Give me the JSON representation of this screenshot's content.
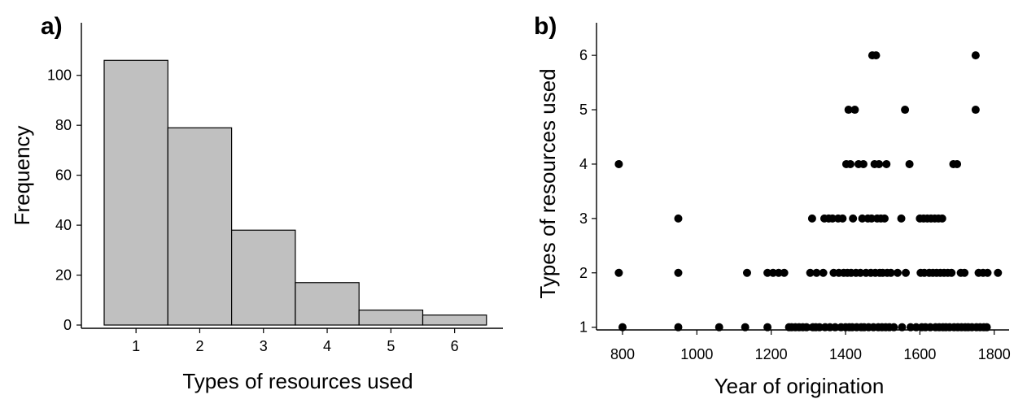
{
  "chart_data": [
    {
      "panel_label": "a)",
      "type": "bar",
      "title": "",
      "xlabel": "Types of resources used",
      "ylabel": "Frequency",
      "categories": [
        "1",
        "2",
        "3",
        "4",
        "5",
        "6"
      ],
      "values": [
        106,
        79,
        38,
        17,
        6,
        4
      ],
      "ylim": [
        0,
        110
      ],
      "yticks": [
        0,
        20,
        40,
        60,
        80,
        100
      ],
      "grid": false,
      "bar_color": "#c0c0c0"
    },
    {
      "panel_label": "b)",
      "type": "scatter",
      "title": "",
      "xlabel": "Year of origination",
      "ylabel": "Types of resources used",
      "xlim": [
        730,
        1840
      ],
      "ylim": [
        0.95,
        6.6
      ],
      "xticks": [
        800,
        1000,
        1200,
        1400,
        1600,
        1800
      ],
      "yticks": [
        1,
        2,
        3,
        4,
        5,
        6
      ],
      "grid": false,
      "point_color": "#000000",
      "series": [
        {
          "points": [
            [
              790,
              4
            ],
            [
              790,
              2
            ],
            [
              800,
              1
            ],
            [
              950,
              3
            ],
            [
              950,
              2
            ],
            [
              950,
              1
            ],
            [
              1060,
              1
            ],
            [
              1130,
              1
            ],
            [
              1135,
              2
            ],
            [
              1190,
              1
            ],
            [
              1190,
              2
            ],
            [
              1205,
              2
            ],
            [
              1220,
              2
            ],
            [
              1235,
              2
            ],
            [
              1248,
              1
            ],
            [
              1255,
              1
            ],
            [
              1265,
              1
            ],
            [
              1275,
              1
            ],
            [
              1285,
              1
            ],
            [
              1295,
              1
            ],
            [
              1305,
              2
            ],
            [
              1310,
              3
            ],
            [
              1312,
              1
            ],
            [
              1320,
              1
            ],
            [
              1322,
              2
            ],
            [
              1330,
              1
            ],
            [
              1340,
              2
            ],
            [
              1343,
              3
            ],
            [
              1345,
              1
            ],
            [
              1355,
              3
            ],
            [
              1358,
              1
            ],
            [
              1365,
              3
            ],
            [
              1368,
              2
            ],
            [
              1372,
              1
            ],
            [
              1380,
              3
            ],
            [
              1382,
              2
            ],
            [
              1388,
              1
            ],
            [
              1392,
              3
            ],
            [
              1395,
              2
            ],
            [
              1400,
              1
            ],
            [
              1402,
              4
            ],
            [
              1405,
              2
            ],
            [
              1408,
              5
            ],
            [
              1410,
              1
            ],
            [
              1413,
              4
            ],
            [
              1415,
              2
            ],
            [
              1418,
              1
            ],
            [
              1420,
              3
            ],
            [
              1425,
              5
            ],
            [
              1428,
              2
            ],
            [
              1430,
              1
            ],
            [
              1435,
              4
            ],
            [
              1440,
              2
            ],
            [
              1442,
              1
            ],
            [
              1445,
              3
            ],
            [
              1448,
              4
            ],
            [
              1450,
              1
            ],
            [
              1455,
              2
            ],
            [
              1460,
              3
            ],
            [
              1462,
              1
            ],
            [
              1468,
              2
            ],
            [
              1470,
              3
            ],
            [
              1472,
              6
            ],
            [
              1475,
              1
            ],
            [
              1478,
              4
            ],
            [
              1480,
              2
            ],
            [
              1482,
              6
            ],
            [
              1485,
              3
            ],
            [
              1488,
              1
            ],
            [
              1490,
              4
            ],
            [
              1492,
              2
            ],
            [
              1495,
              3
            ],
            [
              1498,
              1
            ],
            [
              1500,
              2
            ],
            [
              1505,
              3
            ],
            [
              1508,
              1
            ],
            [
              1510,
              4
            ],
            [
              1512,
              2
            ],
            [
              1518,
              1
            ],
            [
              1522,
              2
            ],
            [
              1530,
              1
            ],
            [
              1540,
              2
            ],
            [
              1550,
              3
            ],
            [
              1552,
              1
            ],
            [
              1560,
              5
            ],
            [
              1562,
              2
            ],
            [
              1572,
              4
            ],
            [
              1575,
              1
            ],
            [
              1590,
              1
            ],
            [
              1600,
              3
            ],
            [
              1602,
              2
            ],
            [
              1605,
              1
            ],
            [
              1610,
              3
            ],
            [
              1612,
              2
            ],
            [
              1615,
              1
            ],
            [
              1620,
              3
            ],
            [
              1625,
              2
            ],
            [
              1628,
              1
            ],
            [
              1630,
              3
            ],
            [
              1635,
              2
            ],
            [
              1640,
              3
            ],
            [
              1642,
              1
            ],
            [
              1645,
              2
            ],
            [
              1650,
              3
            ],
            [
              1652,
              1
            ],
            [
              1655,
              2
            ],
            [
              1660,
              3
            ],
            [
              1662,
              1
            ],
            [
              1665,
              2
            ],
            [
              1670,
              1
            ],
            [
              1675,
              2
            ],
            [
              1680,
              1
            ],
            [
              1685,
              2
            ],
            [
              1690,
              4
            ],
            [
              1692,
              1
            ],
            [
              1700,
              4
            ],
            [
              1702,
              1
            ],
            [
              1710,
              2
            ],
            [
              1712,
              1
            ],
            [
              1720,
              2
            ],
            [
              1722,
              1
            ],
            [
              1730,
              1
            ],
            [
              1740,
              1
            ],
            [
              1750,
              6
            ],
            [
              1750,
              5
            ],
            [
              1752,
              1
            ],
            [
              1758,
              2
            ],
            [
              1762,
              1
            ],
            [
              1770,
              2
            ],
            [
              1772,
              1
            ],
            [
              1780,
              1
            ],
            [
              1782,
              2
            ],
            [
              1810,
              2
            ]
          ]
        }
      ]
    }
  ]
}
